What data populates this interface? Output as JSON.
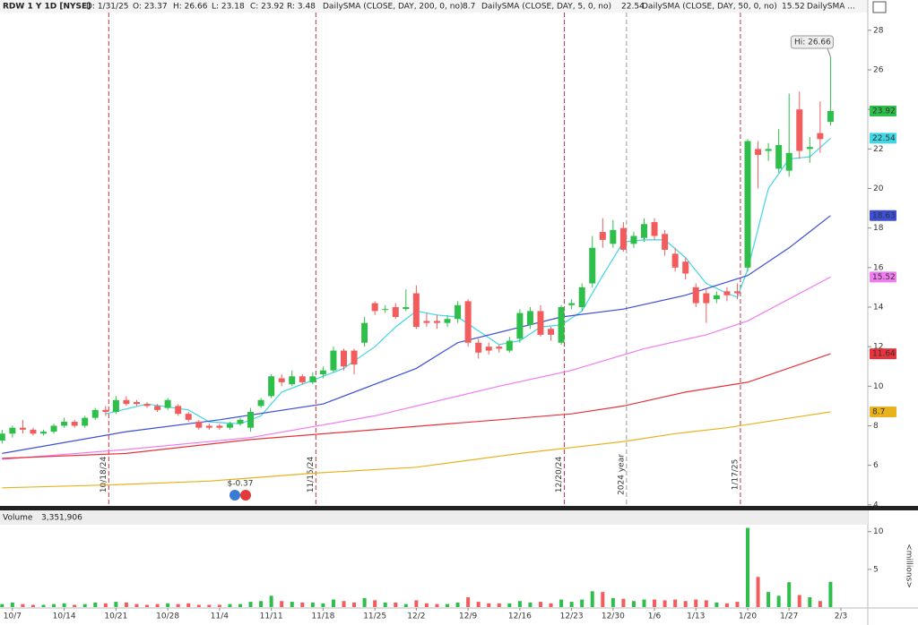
{
  "header": {
    "symbol": "RDW 1 Y 1D [NYSE]",
    "date": "D: 1/31/25",
    "open": "O: 23.37",
    "high": "H: 26.66",
    "low": "L: 23.18",
    "close": "C: 23.92",
    "range": "R: 3.48"
  },
  "chart_data": {
    "type": "candlestick",
    "ohlc": {
      "open": [
        7.25,
        7.6,
        7.9,
        7.8,
        7.6,
        7.7,
        8.0,
        8.2,
        8.0,
        8.4,
        8.8,
        8.7,
        9.3,
        9.2,
        9.1,
        9.0,
        8.9,
        9.0,
        8.6,
        8.2,
        8.0,
        8.0,
        7.9,
        8.1,
        7.9,
        9.0,
        9.5,
        10.4,
        10.1,
        10.5,
        10.2,
        10.6,
        10.8,
        11.8,
        11.8,
        12.2,
        14.2,
        13.9,
        14.0,
        13.9,
        14.7,
        13.3,
        13.3,
        13.2,
        13.4,
        14.3,
        12.2,
        12.0,
        12.0,
        11.8,
        12.4,
        13.1,
        13.8,
        12.9,
        12.2,
        14.1,
        14.0,
        15.2,
        17.8,
        17.2,
        18.0,
        17.2,
        17.5,
        18.3,
        17.7,
        16.7,
        16.3,
        15.0,
        14.7,
        14.4,
        14.8,
        14.8,
        16.0,
        22.0,
        21.9,
        21.0,
        20.9,
        24.0,
        22.0,
        22.8,
        23.37
      ],
      "high": [
        7.8,
        8.0,
        8.3,
        7.9,
        7.8,
        8.1,
        8.4,
        8.3,
        8.5,
        8.9,
        9.0,
        9.5,
        9.5,
        9.3,
        9.2,
        9.1,
        9.4,
        9.1,
        8.7,
        8.3,
        8.1,
        8.1,
        8.2,
        8.4,
        8.9,
        9.4,
        10.6,
        10.6,
        10.8,
        10.6,
        10.7,
        11.0,
        12.0,
        11.9,
        11.9,
        13.5,
        14.3,
        14.1,
        14.2,
        14.9,
        15.1,
        13.7,
        13.6,
        13.6,
        14.3,
        14.4,
        12.4,
        12.2,
        12.1,
        12.5,
        13.9,
        14.0,
        14.1,
        13.0,
        14.1,
        14.4,
        15.2,
        17.6,
        18.5,
        18.4,
        18.3,
        17.8,
        18.5,
        18.5,
        17.9,
        17.0,
        16.5,
        15.2,
        14.9,
        14.8,
        15.0,
        15.2,
        22.5,
        22.4,
        22.3,
        23.0,
        24.8,
        24.9,
        22.6,
        24.4,
        26.66
      ],
      "low": [
        7.1,
        7.4,
        7.6,
        7.5,
        7.5,
        7.6,
        7.9,
        7.9,
        7.9,
        8.3,
        8.5,
        8.6,
        9.0,
        9.0,
        8.9,
        8.7,
        8.8,
        8.5,
        8.2,
        7.8,
        7.8,
        7.8,
        7.8,
        8.0,
        7.7,
        8.9,
        9.4,
        10.0,
        10.0,
        10.1,
        10.1,
        10.4,
        10.7,
        10.8,
        10.6,
        12.0,
        13.6,
        13.7,
        13.4,
        13.8,
        12.9,
        13.0,
        12.9,
        13.0,
        13.2,
        12.0,
        11.4,
        11.6,
        11.7,
        11.7,
        12.2,
        12.9,
        12.5,
        12.3,
        12.1,
        13.9,
        13.8,
        15.0,
        17.0,
        17.0,
        16.8,
        17.0,
        17.3,
        17.4,
        16.6,
        15.8,
        15.4,
        14.0,
        13.2,
        14.2,
        14.3,
        14.4,
        15.8,
        20.0,
        21.4,
        20.8,
        20.6,
        21.5,
        21.3,
        21.8,
        23.18
      ],
      "close": [
        7.6,
        7.9,
        7.8,
        7.6,
        7.7,
        8.0,
        8.2,
        8.0,
        8.4,
        8.8,
        8.7,
        9.3,
        9.1,
        9.1,
        9.0,
        8.8,
        9.3,
        8.6,
        8.3,
        7.9,
        7.9,
        7.9,
        8.1,
        8.3,
        8.7,
        9.3,
        10.5,
        10.2,
        10.5,
        10.2,
        10.5,
        10.8,
        11.8,
        11.0,
        11.1,
        13.2,
        13.8,
        13.9,
        13.5,
        14.0,
        13.0,
        13.2,
        13.2,
        13.4,
        14.1,
        12.2,
        11.7,
        11.8,
        11.9,
        12.3,
        13.7,
        13.8,
        12.6,
        12.6,
        14.0,
        14.2,
        15.0,
        17.0,
        17.4,
        17.9,
        16.9,
        17.6,
        18.2,
        17.6,
        16.9,
        16.0,
        15.7,
        14.2,
        14.2,
        14.6,
        14.6,
        14.7,
        22.4,
        21.7,
        22.0,
        22.2,
        21.8,
        21.9,
        22.1,
        22.5,
        23.92
      ],
      "up_color": "#2dbf4a",
      "down_color": "#f25c5c"
    },
    "high_label": "Hi: 26.66",
    "ylim": [
      3.9,
      28.9
    ],
    "yticks": [
      4,
      6,
      8,
      10,
      12,
      14,
      16,
      18,
      20,
      22,
      24,
      26,
      28
    ],
    "xlim": [
      -0.2,
      83.6
    ],
    "xticks": [
      {
        "value": 1,
        "label": "10/7"
      },
      {
        "value": 6,
        "label": "10/14"
      },
      {
        "value": 11,
        "label": "10/21"
      },
      {
        "value": 16,
        "label": "10/28"
      },
      {
        "value": 21,
        "label": "11/4"
      },
      {
        "value": 26,
        "label": "11/11"
      },
      {
        "value": 31,
        "label": "11/18"
      },
      {
        "value": 36,
        "label": "11/25"
      },
      {
        "value": 40,
        "label": "12/2"
      },
      {
        "value": 45,
        "label": "12/9"
      },
      {
        "value": 50,
        "label": "12/16"
      },
      {
        "value": 55,
        "label": "12/23"
      },
      {
        "value": 59,
        "label": "12/30"
      },
      {
        "value": 63,
        "label": "1/6"
      },
      {
        "value": 67,
        "label": "1/13"
      },
      {
        "value": 72,
        "label": "1/20"
      },
      {
        "value": 76,
        "label": "1/27"
      },
      {
        "value": 81,
        "label": "2/3"
      }
    ],
    "series": [
      {
        "name": "DailySMA (CLOSE, DAY, 200, 0, no)",
        "color": "#e8b21e",
        "x": [
          0,
          10,
          20,
          30,
          40,
          50,
          55,
          60,
          65,
          70,
          75,
          80
        ],
        "values": [
          4.86,
          5.0,
          5.2,
          5.6,
          5.9,
          6.6,
          6.9,
          7.2,
          7.6,
          7.9,
          8.3,
          8.7
        ]
      },
      {
        "name": "DailySMA (CLOSE, DAY, 5, 0, no)",
        "color": "#3fd6e6",
        "x": [
          10,
          14,
          18,
          20,
          23,
          25,
          27,
          30,
          33,
          36,
          38,
          40,
          42,
          44,
          46,
          48,
          50,
          52,
          54,
          56,
          58,
          60,
          62,
          64,
          66,
          68,
          70,
          71,
          72,
          74,
          76,
          78,
          80
        ],
        "values": [
          8.6,
          9.1,
          8.8,
          8.2,
          8.1,
          8.5,
          9.7,
          10.3,
          10.9,
          12.0,
          13.0,
          13.8,
          13.6,
          13.5,
          12.8,
          12.1,
          12.3,
          13.0,
          13.1,
          13.8,
          15.6,
          17.3,
          17.4,
          17.4,
          16.5,
          15.2,
          14.7,
          14.5,
          15.9,
          20.0,
          21.5,
          21.6,
          22.54
        ]
      },
      {
        "name": "DailySMA (CLOSE, DAY, 50, 0, no)",
        "color": "#f07cf0",
        "x": [
          0,
          12,
          24,
          36,
          48,
          55,
          62,
          68,
          72,
          80
        ],
        "values": [
          6.3,
          6.8,
          7.4,
          8.5,
          10.0,
          10.8,
          11.9,
          12.6,
          13.3,
          15.52
        ]
      },
      {
        "name": "DailySMA ...",
        "color": "#e8323c",
        "x": [
          0,
          12,
          24,
          36,
          48,
          55,
          60,
          66,
          72,
          80
        ],
        "values": [
          6.35,
          6.6,
          7.3,
          7.8,
          8.3,
          8.6,
          9.0,
          9.7,
          10.2,
          11.64
        ]
      },
      {
        "color": "#3c4fd6",
        "x": [
          0,
          12,
          21,
          31,
          40,
          44,
          54,
          60,
          66,
          72,
          76,
          80
        ],
        "values": [
          6.6,
          7.7,
          8.3,
          9.1,
          10.9,
          12.2,
          13.5,
          13.9,
          14.6,
          15.6,
          17.0,
          18.63
        ]
      }
    ],
    "events": [
      {
        "index": 10,
        "label": "10/18/24",
        "color": "#c8323c"
      },
      {
        "index": 30,
        "label": "11/15/24",
        "color": "#c8323c"
      },
      {
        "index": 54,
        "label": "12/20/24",
        "color": "#c8323c"
      },
      {
        "index": 60,
        "label": "2024 year",
        "color": "#999999"
      },
      {
        "index": 71,
        "label": "1/17/25",
        "color": "#c8323c"
      }
    ],
    "dividend": {
      "index": 23,
      "label": "$-0.37"
    },
    "volume": {
      "title": "Volume",
      "last": "3,351,906",
      "unit_label": "<millions>",
      "ylim": [
        0,
        10.8
      ],
      "yticks": [
        5,
        10
      ],
      "values": [
        0.4,
        0.6,
        0.4,
        0.3,
        0.3,
        0.4,
        0.5,
        0.3,
        0.4,
        0.6,
        0.5,
        0.7,
        0.6,
        0.4,
        0.3,
        0.4,
        0.5,
        0.4,
        0.5,
        0.3,
        0.3,
        0.3,
        0.4,
        0.4,
        0.7,
        0.8,
        1.5,
        0.8,
        0.7,
        0.6,
        0.6,
        0.5,
        1.0,
        0.8,
        0.6,
        1.2,
        0.9,
        0.6,
        0.6,
        0.4,
        0.9,
        0.5,
        0.4,
        0.4,
        0.6,
        1.3,
        0.7,
        0.5,
        0.5,
        0.5,
        0.8,
        0.6,
        0.7,
        0.5,
        1.0,
        0.7,
        1.0,
        2.1,
        2.0,
        1.2,
        1.1,
        0.8,
        1.0,
        1.0,
        0.9,
        1.0,
        0.8,
        1.0,
        0.9,
        0.6,
        0.5,
        0.7,
        10.5,
        4.0,
        2.0,
        1.5,
        3.3,
        1.6,
        1.3,
        0.8,
        3.35
      ]
    }
  }
}
